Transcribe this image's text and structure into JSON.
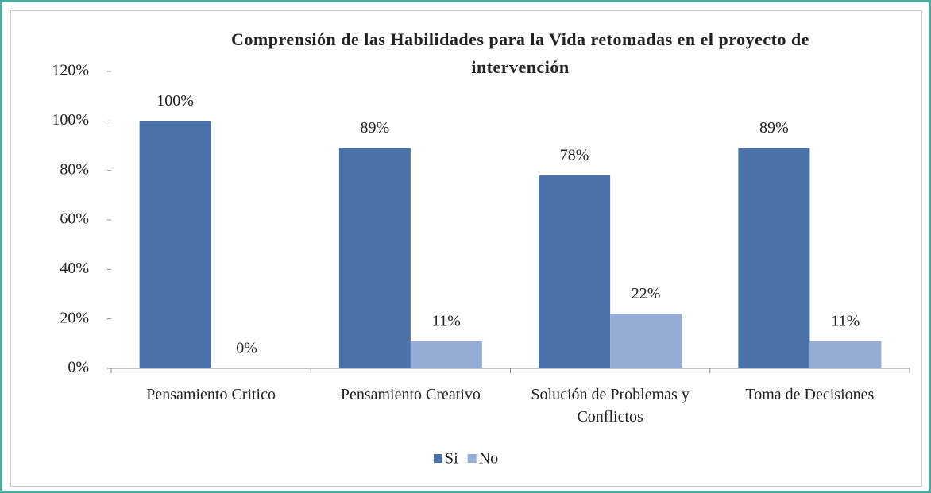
{
  "chart_data": {
    "type": "bar",
    "title": "Comprensión de las Habilidades para la Vida retomadas en el proyecto de intervención",
    "categories": [
      "Pensamiento Critico",
      "Pensamiento Creativo",
      "Solución de Problemas y Conflictos",
      "Toma de Decisiones"
    ],
    "series": [
      {
        "name": "Si",
        "color": "#4a72a8",
        "values": [
          100,
          89,
          78,
          89
        ],
        "value_labels": [
          "100%",
          "89%",
          "78%",
          "89%"
        ]
      },
      {
        "name": "No",
        "color": "#94acd6",
        "values": [
          0,
          11,
          22,
          11
        ],
        "value_labels": [
          "0%",
          "11%",
          "22%",
          "11%"
        ]
      }
    ],
    "ylim": [
      0,
      120
    ],
    "yticks": [
      {
        "value": 0,
        "label": "0%"
      },
      {
        "value": 20,
        "label": "20%"
      },
      {
        "value": 40,
        "label": "40%"
      },
      {
        "value": 60,
        "label": "60%"
      },
      {
        "value": 80,
        "label": "80%"
      },
      {
        "value": 100,
        "label": "100%"
      },
      {
        "value": 120,
        "label": "120%"
      }
    ],
    "grid": false,
    "legend": "bottom"
  }
}
